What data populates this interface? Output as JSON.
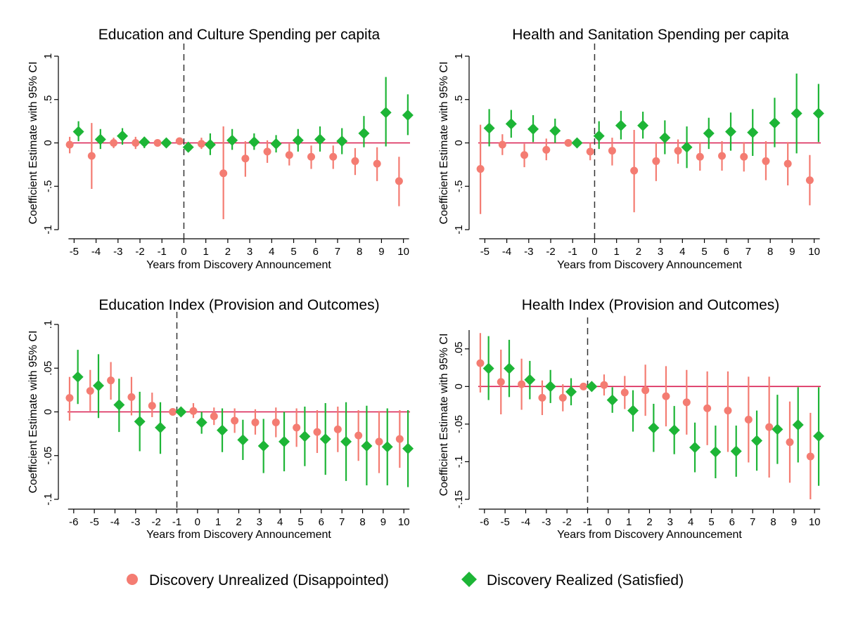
{
  "colors": {
    "unrealized": "#F47C72",
    "realized": "#1DB536",
    "zero_line": "#D81B4F",
    "event_line": "#333333"
  },
  "legend": {
    "unrealized_label": "Discovery Unrealized (Disappointed)",
    "realized_label": "Discovery Realized (Satisfied)"
  },
  "chart_data": [
    {
      "type": "scatter",
      "title": "Education and Culture Spending per capita",
      "xlabel": "Years from Discovery Announcement",
      "ylabel": "Coefficient Estimate with 95% CI",
      "x_ticks": [
        -5,
        -4,
        -3,
        -2,
        -1,
        0,
        1,
        2,
        3,
        4,
        5,
        6,
        7,
        8,
        9,
        10
      ],
      "x_tick_labels": [
        "-5",
        "-4",
        "-3",
        "-2",
        "-1",
        "0",
        "1",
        "2",
        "3",
        "4",
        "5",
        "6",
        "7",
        "8",
        "9",
        "10"
      ],
      "y_ticks": [
        -1,
        -0.5,
        0,
        0.5,
        1
      ],
      "y_tick_labels": [
        "-1",
        "-.5",
        "0",
        ".5",
        "1"
      ],
      "xlim": [
        -5.3,
        10.3
      ],
      "ylim": [
        -1,
        1
      ],
      "event_x": 0,
      "series": [
        {
          "name": "Discovery Unrealized (Disappointed)",
          "x": [
            -5,
            -4,
            -3,
            -2,
            -1,
            0,
            1,
            2,
            3,
            4,
            5,
            6,
            7,
            8,
            9,
            10
          ],
          "y": [
            -0.02,
            -0.15,
            0.0,
            0.0,
            0.0,
            0.02,
            -0.01,
            -0.35,
            -0.18,
            -0.1,
            -0.14,
            -0.16,
            -0.16,
            -0.21,
            -0.24,
            -0.44
          ],
          "lo": [
            -0.12,
            -0.53,
            -0.06,
            -0.07,
            -0.03,
            -0.02,
            -0.07,
            -0.88,
            -0.39,
            -0.23,
            -0.26,
            -0.3,
            -0.3,
            -0.37,
            -0.44,
            -0.73
          ],
          "hi": [
            0.07,
            0.23,
            0.06,
            0.07,
            0.03,
            0.06,
            0.06,
            0.19,
            0.02,
            0.03,
            -0.01,
            -0.03,
            -0.03,
            -0.06,
            -0.05,
            -0.16
          ]
        },
        {
          "name": "Discovery Realized (Satisfied)",
          "x": [
            -5,
            -4,
            -3,
            -2,
            -1,
            0,
            1,
            2,
            3,
            4,
            5,
            6,
            7,
            8,
            9,
            10
          ],
          "y": [
            0.13,
            0.04,
            0.08,
            0.01,
            0.0,
            -0.05,
            -0.02,
            0.03,
            0.01,
            -0.01,
            0.03,
            0.04,
            0.02,
            0.11,
            0.35,
            0.32
          ],
          "lo": [
            0.02,
            -0.07,
            -0.02,
            -0.06,
            -0.03,
            -0.1,
            -0.14,
            -0.08,
            -0.08,
            -0.11,
            -0.1,
            -0.1,
            -0.13,
            -0.05,
            -0.04,
            0.09
          ],
          "hi": [
            0.25,
            0.16,
            0.17,
            0.07,
            0.03,
            0.01,
            0.11,
            0.16,
            0.11,
            0.09,
            0.16,
            0.19,
            0.17,
            0.31,
            0.76,
            0.56
          ]
        }
      ]
    },
    {
      "type": "scatter",
      "title": "Health and Sanitation Spending per capita",
      "xlabel": "Years from Discovery Announcement",
      "ylabel": "Coefficient Estimate with 95% CI",
      "x_ticks": [
        -5,
        -4,
        -3,
        -2,
        -1,
        0,
        1,
        2,
        3,
        4,
        5,
        6,
        7,
        8,
        9,
        10
      ],
      "x_tick_labels": [
        "-5",
        "-4",
        "-3",
        "-2",
        "-1",
        "0",
        "1",
        "2",
        "3",
        "4",
        "5",
        "6",
        "7",
        "8",
        "9",
        "10"
      ],
      "y_ticks": [
        -1,
        -0.5,
        0,
        0.5,
        1
      ],
      "y_tick_labels": [
        "-1",
        "-.5",
        "0",
        ".5",
        "1"
      ],
      "xlim": [
        -5.3,
        10.3
      ],
      "ylim": [
        -1,
        1
      ],
      "event_x": 0,
      "series": [
        {
          "name": "Discovery Unrealized (Disappointed)",
          "x": [
            -5,
            -4,
            -3,
            -2,
            -1,
            0,
            1,
            2,
            3,
            4,
            5,
            6,
            7,
            8,
            9,
            10
          ],
          "y": [
            -0.3,
            -0.02,
            -0.14,
            -0.08,
            0.0,
            -0.1,
            -0.09,
            -0.32,
            -0.21,
            -0.09,
            -0.16,
            -0.15,
            -0.16,
            -0.21,
            -0.24,
            -0.43
          ],
          "lo": [
            -0.82,
            -0.14,
            -0.28,
            -0.2,
            -0.03,
            -0.2,
            -0.26,
            -0.8,
            -0.44,
            -0.24,
            -0.32,
            -0.32,
            -0.33,
            -0.43,
            -0.49,
            -0.72
          ],
          "hi": [
            0.21,
            0.1,
            -0.01,
            0.05,
            0.03,
            0.0,
            0.06,
            0.15,
            0.01,
            0.04,
            0.01,
            0.02,
            0.01,
            0.02,
            0.01,
            -0.14
          ]
        },
        {
          "name": "Discovery Realized (Satisfied)",
          "x": [
            -5,
            -4,
            -3,
            -2,
            -1,
            0,
            1,
            2,
            3,
            4,
            5,
            6,
            7,
            8,
            9,
            10
          ],
          "y": [
            0.17,
            0.22,
            0.16,
            0.14,
            0.0,
            0.08,
            0.2,
            0.2,
            0.06,
            -0.05,
            0.11,
            0.13,
            0.12,
            0.23,
            0.34,
            0.34
          ],
          "lo": [
            -0.04,
            0.06,
            0.01,
            0.0,
            -0.03,
            -0.07,
            0.04,
            0.05,
            -0.13,
            -0.29,
            -0.07,
            -0.09,
            -0.15,
            -0.05,
            -0.12,
            0.01
          ],
          "hi": [
            0.39,
            0.38,
            0.32,
            0.28,
            0.03,
            0.25,
            0.37,
            0.36,
            0.26,
            0.19,
            0.29,
            0.35,
            0.39,
            0.52,
            0.8,
            0.68
          ]
        }
      ]
    },
    {
      "type": "scatter",
      "title": "Education Index (Provision and Outcomes)",
      "xlabel": "Years from Discovery Announcement",
      "ylabel": "Coefficient Estimate with 95% CI",
      "x_ticks": [
        -6,
        -5,
        -4,
        -3,
        -2,
        -1,
        0,
        1,
        2,
        3,
        4,
        5,
        6,
        7,
        8,
        9,
        10
      ],
      "x_tick_labels": [
        "-6",
        "-5",
        "-4",
        "-3",
        "-2",
        "-1",
        "0",
        "1",
        "2",
        "3",
        "4",
        "5",
        "6",
        "7",
        "8",
        "9",
        "10"
      ],
      "y_ticks": [
        -0.1,
        -0.05,
        0,
        0.05,
        0.1
      ],
      "y_tick_labels": [
        "-.1",
        "-.05",
        "0",
        ".05",
        ".1"
      ],
      "xlim": [
        -6.3,
        10.3
      ],
      "ylim": [
        -0.1,
        0.1
      ],
      "event_x": -1,
      "series": [
        {
          "name": "Discovery Unrealized (Disappointed)",
          "x": [
            -6,
            -5,
            -4,
            -3,
            -2,
            -1,
            0,
            1,
            2,
            3,
            4,
            5,
            6,
            7,
            8,
            9,
            10
          ],
          "y": [
            0.016,
            0.024,
            0.036,
            0.017,
            0.007,
            0.0,
            0.001,
            -0.005,
            -0.01,
            -0.012,
            -0.012,
            -0.018,
            -0.023,
            -0.02,
            -0.027,
            -0.034,
            -0.031
          ],
          "lo": [
            -0.01,
            0.001,
            0.014,
            -0.004,
            -0.006,
            -0.002,
            -0.007,
            -0.015,
            -0.024,
            -0.026,
            -0.029,
            -0.04,
            -0.047,
            -0.046,
            -0.056,
            -0.07,
            -0.064
          ],
          "hi": [
            0.04,
            0.048,
            0.057,
            0.04,
            0.022,
            0.002,
            0.01,
            0.005,
            0.004,
            0.003,
            0.005,
            0.004,
            0.002,
            0.006,
            0.002,
            0.001,
            0.002
          ]
        },
        {
          "name": "Discovery Realized (Satisfied)",
          "x": [
            -6,
            -5,
            -4,
            -3,
            -2,
            -1,
            0,
            1,
            2,
            3,
            4,
            5,
            6,
            7,
            8,
            9,
            10
          ],
          "y": [
            0.04,
            0.03,
            0.008,
            -0.011,
            -0.018,
            0.0,
            -0.012,
            -0.021,
            -0.032,
            -0.039,
            -0.034,
            -0.028,
            -0.031,
            -0.034,
            -0.039,
            -0.04,
            -0.042
          ],
          "lo": [
            0.009,
            -0.007,
            -0.023,
            -0.045,
            -0.048,
            -0.002,
            -0.025,
            -0.046,
            -0.055,
            -0.07,
            -0.068,
            -0.062,
            -0.072,
            -0.079,
            -0.084,
            -0.084,
            -0.086
          ],
          "hi": [
            0.071,
            0.066,
            0.038,
            0.023,
            0.011,
            0.002,
            0.0,
            0.004,
            -0.009,
            -0.008,
            0.0,
            0.006,
            0.01,
            0.011,
            0.007,
            0.004,
            0.002
          ]
        }
      ]
    },
    {
      "type": "scatter",
      "title": "Health Index (Provision and Outcomes)",
      "xlabel": "Years from Discovery Announcement",
      "ylabel": "Coefficient Estimate with 95% CI",
      "x_ticks": [
        -6,
        -5,
        -4,
        -3,
        -2,
        -1,
        0,
        1,
        2,
        3,
        4,
        5,
        6,
        7,
        8,
        9,
        10
      ],
      "x_tick_labels": [
        "-6",
        "-5",
        "-4",
        "-3",
        "-2",
        "-1",
        "0",
        "1",
        "2",
        "3",
        "4",
        "5",
        "6",
        "7",
        "8",
        "9",
        "10"
      ],
      "y_ticks": [
        -0.15,
        -0.1,
        -0.05,
        0,
        0.05
      ],
      "y_tick_labels": [
        "-.15",
        "-.1",
        "-.05",
        "0",
        ".05"
      ],
      "xlim": [
        -6.3,
        10.3
      ],
      "ylim": [
        -0.15,
        0.075
      ],
      "event_x": -1,
      "series": [
        {
          "name": "Discovery Unrealized (Disappointed)",
          "x": [
            -6,
            -5,
            -4,
            -3,
            -2,
            -1,
            0,
            1,
            2,
            3,
            4,
            5,
            6,
            7,
            8,
            9,
            10
          ],
          "y": [
            0.031,
            0.006,
            0.003,
            -0.015,
            -0.015,
            0.0,
            0.002,
            -0.008,
            -0.005,
            -0.013,
            -0.021,
            -0.029,
            -0.032,
            -0.044,
            -0.054,
            -0.074,
            -0.093
          ],
          "lo": [
            -0.008,
            -0.037,
            -0.031,
            -0.038,
            -0.033,
            -0.002,
            -0.012,
            -0.03,
            -0.039,
            -0.053,
            -0.064,
            -0.078,
            -0.087,
            -0.101,
            -0.121,
            -0.128,
            -0.15
          ],
          "hi": [
            0.071,
            0.049,
            0.037,
            0.008,
            0.003,
            0.002,
            0.016,
            0.014,
            0.029,
            0.027,
            0.022,
            0.02,
            0.02,
            0.013,
            0.013,
            -0.02,
            -0.035
          ]
        },
        {
          "name": "Discovery Realized (Satisfied)",
          "x": [
            -6,
            -5,
            -4,
            -3,
            -2,
            -1,
            0,
            1,
            2,
            3,
            4,
            5,
            6,
            7,
            8,
            9,
            10
          ],
          "y": [
            0.024,
            0.024,
            0.009,
            0.0,
            -0.007,
            0.0,
            -0.018,
            -0.032,
            -0.055,
            -0.058,
            -0.081,
            -0.087,
            -0.086,
            -0.072,
            -0.057,
            -0.051,
            -0.066
          ],
          "lo": [
            -0.018,
            -0.014,
            -0.017,
            -0.022,
            -0.025,
            -0.002,
            -0.035,
            -0.06,
            -0.087,
            -0.09,
            -0.114,
            -0.122,
            -0.12,
            -0.112,
            -0.103,
            -0.101,
            -0.132
          ],
          "hi": [
            0.067,
            0.062,
            0.034,
            0.022,
            0.011,
            0.002,
            -0.001,
            -0.005,
            -0.023,
            -0.026,
            -0.048,
            -0.052,
            -0.052,
            -0.032,
            -0.011,
            -0.001,
            -0.001
          ]
        }
      ]
    }
  ]
}
